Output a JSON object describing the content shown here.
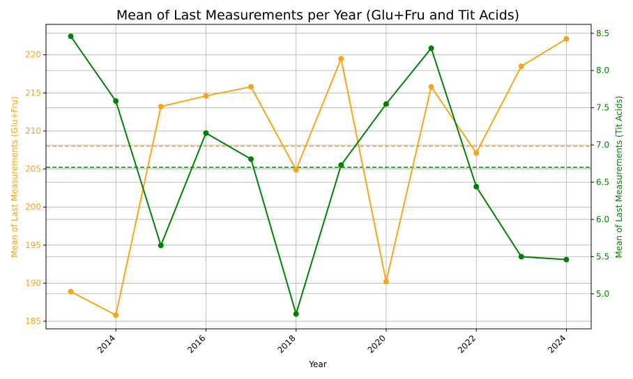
{
  "chart_data": {
    "type": "line",
    "title": "Mean of Last Measurements per Year (Glu+Fru and Tit Acids)",
    "xlabel": "Year",
    "x": [
      2013,
      2014,
      2015,
      2016,
      2017,
      2018,
      2019,
      2020,
      2021,
      2022,
      2023,
      2024
    ],
    "xticks": [
      2014,
      2016,
      2018,
      2020,
      2022,
      2024
    ],
    "xlim": [
      2012.45,
      2024.55
    ],
    "grid": true,
    "left_axis": {
      "label": "Mean of Last Measurements (Glu+Fru)",
      "color": "#f5a516",
      "ylim": [
        184,
        224
      ],
      "ticks": [
        185,
        190,
        195,
        200,
        205,
        210,
        215,
        220
      ]
    },
    "right_axis": {
      "label": "Mean of Last Measurements (Tit Acids)",
      "color": "#008000",
      "ylim": [
        4.53,
        8.62
      ],
      "ticks": [
        5.0,
        5.5,
        6.0,
        6.5,
        7.0,
        7.5,
        8.0,
        8.5
      ]
    },
    "series": [
      {
        "name": "Glu+Fru",
        "axis": "left",
        "color": "#f5a516",
        "values": [
          188.9,
          185.8,
          213.2,
          214.6,
          215.8,
          204.9,
          219.5,
          190.2,
          215.8,
          207.1,
          218.5,
          222.1
        ],
        "mean": 208.0
      },
      {
        "name": "Tit Acids",
        "axis": "right",
        "color": "#008000",
        "values": [
          8.46,
          7.59,
          5.65,
          7.16,
          6.81,
          4.73,
          6.73,
          7.55,
          8.3,
          6.44,
          5.5,
          5.46
        ],
        "mean": 6.7
      }
    ]
  }
}
